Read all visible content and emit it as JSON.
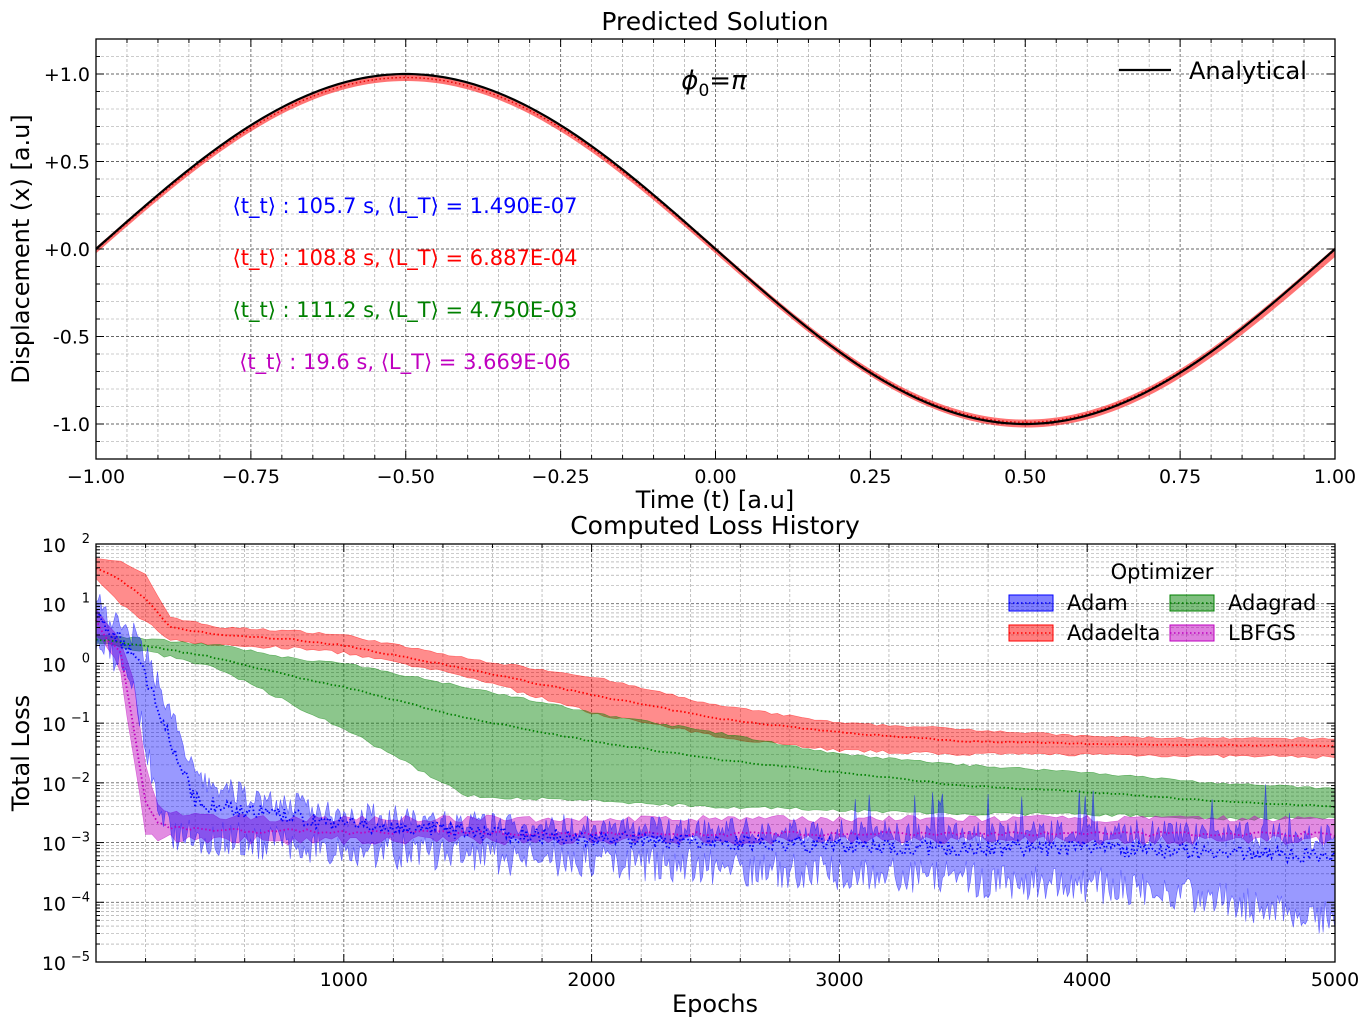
{
  "chart_data": [
    {
      "type": "line",
      "title": "Predicted Solution",
      "xlabel": "Time (t) [a.u]",
      "ylabel": "Displacement (x) [a.u]",
      "xlim": [
        -1.0,
        1.0
      ],
      "ylim": [
        -1.2,
        1.2
      ],
      "xticks": [
        -1.0,
        -0.75,
        -0.5,
        -0.25,
        0.0,
        0.25,
        0.5,
        0.75,
        1.0
      ],
      "xtick_labels": [
        "−1.00",
        "−0.75",
        "−0.50",
        "−0.25",
        "0.00",
        "0.25",
        "0.50",
        "0.75",
        "1.00"
      ],
      "yticks": [
        1.0,
        0.5,
        0.0,
        -0.5,
        -1.0
      ],
      "ytick_labels": [
        "+1.0",
        "+0.5",
        "+0.0",
        "-0.5",
        "-1.0"
      ],
      "grid": true,
      "annotation": "ϕ0=π",
      "legend": {
        "position": "top-right",
        "entries": [
          "Analytical"
        ]
      },
      "series": [
        {
          "name": "Analytical",
          "function": "x = -sin(pi*t)",
          "color": "#000000"
        }
      ],
      "predicted_band": {
        "color": "#ff0000",
        "x": [
          -1.0,
          -0.5,
          0.0,
          0.5,
          1.0
        ],
        "upper": [
          0.0,
          0.99,
          0.0,
          -0.97,
          -0.02
        ],
        "lower": [
          -0.02,
          0.97,
          -0.01,
          -0.99,
          -0.06
        ]
      },
      "stats": [
        {
          "optimizer": "Adam",
          "t_t": "105.7",
          "L_T": "1.490E-07",
          "color": "#0000ff",
          "text": "⟨t_t⟩ : 105.7 s, ⟨L_T⟩ = 1.490E-07"
        },
        {
          "optimizer": "Adadelta",
          "t_t": "108.8",
          "L_T": "6.887E-04",
          "color": "#ff0000",
          "text": "⟨t_t⟩ : 108.8 s, ⟨L_T⟩ = 6.887E-04"
        },
        {
          "optimizer": "Adagrad",
          "t_t": "111.2",
          "L_T": "4.750E-03",
          "color": "#008000",
          "text": "⟨t_t⟩ : 111.2 s, ⟨L_T⟩ = 4.750E-03"
        },
        {
          "optimizer": "LBFGS",
          "t_t": "19.6",
          "L_T": "3.669E-06",
          "color": "#bf00bf",
          "text": "⟨t_t⟩ : 19.6 s, ⟨L_T⟩ = 3.669E-06"
        }
      ]
    },
    {
      "type": "line",
      "title": "Computed Loss History",
      "xlabel": "Epochs",
      "ylabel": "Total Loss",
      "yscale": "log",
      "xlim": [
        0,
        5000
      ],
      "ylim": [
        1e-05,
        100
      ],
      "xticks": [
        1000,
        2000,
        3000,
        4000,
        5000
      ],
      "xtick_labels": [
        "1000",
        "2000",
        "3000",
        "4000",
        "5000"
      ],
      "yticks": [
        100,
        10,
        1,
        0.1,
        0.01,
        0.001,
        0.0001,
        1e-05
      ],
      "ytick_exponents": [
        "2",
        "1",
        "0",
        "−1",
        "−2",
        "−3",
        "−4",
        "−5"
      ],
      "grid": true,
      "legend": {
        "title": "Optimizer",
        "position": "top-right",
        "columns": 2,
        "entries": [
          "Adam",
          "Adagrad",
          "Adadelta",
          "LBFGS"
        ]
      },
      "series": [
        {
          "name": "Adam",
          "color": "#0000ff",
          "x": [
            0,
            50,
            100,
            150,
            200,
            250,
            300,
            400,
            500,
            700,
            1000,
            1500,
            2000,
            2500,
            3000,
            3500,
            4000,
            4500,
            5000
          ],
          "mean": [
            8,
            3,
            2.5,
            1.5,
            0.6,
            0.2,
            0.05,
            0.005,
            0.004,
            0.003,
            0.002,
            0.0015,
            0.0012,
            0.001,
            0.0009,
            0.0008,
            0.0008,
            0.0007,
            0.0006
          ],
          "upper": [
            15,
            6,
            4,
            3,
            1.5,
            0.5,
            0.15,
            0.012,
            0.008,
            0.005,
            0.003,
            0.002,
            0.0018,
            0.0016,
            0.0015,
            0.0014,
            0.0015,
            0.0014,
            0.0012
          ],
          "lower": [
            3,
            1.5,
            0.8,
            0.3,
            0.05,
            0.003,
            0.0015,
            0.0012,
            0.0012,
            0.001,
            0.0008,
            0.0006,
            0.0005,
            0.0004,
            0.0003,
            0.00025,
            0.0002,
            0.00012,
            5e-05
          ]
        },
        {
          "name": "Adadelta",
          "color": "#ff0000",
          "x": [
            0,
            100,
            200,
            300,
            500,
            800,
            1000,
            1500,
            2000,
            2500,
            3000,
            3500,
            4000,
            4500,
            5000
          ],
          "mean": [
            40,
            25,
            12,
            4,
            3,
            2.5,
            2,
            0.8,
            0.3,
            0.12,
            0.07,
            0.05,
            0.045,
            0.043,
            0.042
          ],
          "upper": [
            60,
            50,
            30,
            6,
            4,
            3.5,
            3,
            1.2,
            0.6,
            0.2,
            0.1,
            0.08,
            0.06,
            0.055,
            0.055
          ],
          "lower": [
            25,
            10,
            5,
            2.5,
            2,
            1.8,
            1.5,
            0.6,
            0.15,
            0.06,
            0.035,
            0.03,
            0.03,
            0.028,
            0.027
          ]
        },
        {
          "name": "Adagrad",
          "color": "#008000",
          "x": [
            0,
            200,
            500,
            800,
            1000,
            1500,
            2000,
            2500,
            3000,
            3500,
            4000,
            4500,
            5000
          ],
          "mean": [
            2.5,
            2,
            1.2,
            0.6,
            0.4,
            0.12,
            0.05,
            0.025,
            0.015,
            0.009,
            0.007,
            0.005,
            0.004
          ],
          "upper": [
            3,
            2.6,
            2,
            1.2,
            1,
            0.4,
            0.15,
            0.07,
            0.03,
            0.02,
            0.015,
            0.01,
            0.008
          ],
          "lower": [
            2.2,
            1.6,
            0.8,
            0.2,
            0.08,
            0.006,
            0.005,
            0.004,
            0.0035,
            0.003,
            0.003,
            0.0025,
            0.0025
          ]
        },
        {
          "name": "LBFGS",
          "color": "#bf00bf",
          "x": [
            0,
            50,
            100,
            150,
            200,
            250,
            300,
            500,
            1000,
            2000,
            3000,
            4000,
            5000
          ],
          "mean": [
            5,
            2.5,
            1.5,
            0.1,
            0.005,
            0.002,
            0.0018,
            0.0016,
            0.0015,
            0.0014,
            0.0014,
            0.0014,
            0.0014
          ],
          "upper": [
            8,
            4,
            2.5,
            0.5,
            0.02,
            0.004,
            0.003,
            0.0026,
            0.0025,
            0.0025,
            0.0025,
            0.0025,
            0.0025
          ],
          "lower": [
            3,
            1.5,
            0.8,
            0.03,
            0.0015,
            0.0012,
            0.0012,
            0.0011,
            0.0011,
            0.0011,
            0.0011,
            0.0011,
            0.0011
          ]
        }
      ]
    }
  ]
}
